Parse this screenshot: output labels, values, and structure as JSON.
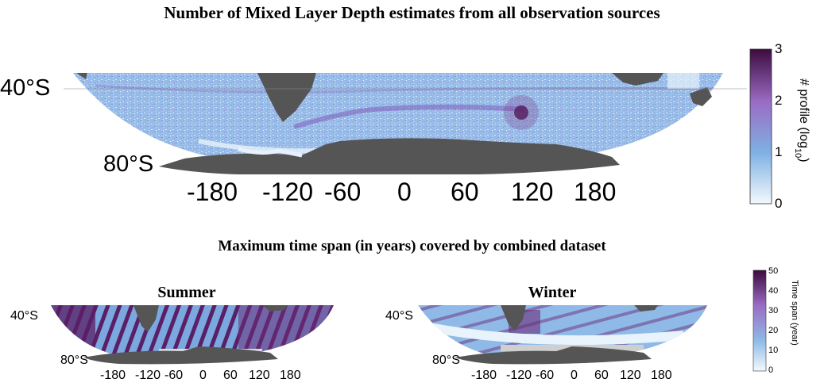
{
  "figure_title": "Number of Mixed Layer Depth estimates from all observation sources",
  "section_title": "Maximum time span (in years) covered by combined dataset",
  "colors": {
    "land": "#555555",
    "low": "#e4f1fb",
    "mid": "#8fbae8",
    "high": "#8a4aa8",
    "max": "#3d0b3f",
    "seaice": "#c9c9c9"
  },
  "top_map": {
    "lat_labels": [
      "40°S",
      "80°S"
    ],
    "lon_labels": [
      "-180",
      "-120",
      "-60",
      "0",
      "60",
      "120",
      "180"
    ],
    "colorbar": {
      "label": "# profile (log",
      "label_sub": "10",
      "label_end": ")",
      "ticks": [
        "0",
        "1",
        "2",
        "3"
      ],
      "min": 0,
      "max": 3
    }
  },
  "summer_map": {
    "title": "Summer",
    "lat_labels": [
      "40°S",
      "80°S"
    ],
    "lon_labels": [
      "-180",
      "-120",
      "-60",
      "0",
      "60",
      "120",
      "180"
    ]
  },
  "winter_map": {
    "title": "Winter",
    "lat_labels": [
      "40°S",
      "80°S"
    ],
    "lon_labels": [
      "-180",
      "-120",
      "-60",
      "0",
      "60",
      "120",
      "180"
    ]
  },
  "time_colorbar": {
    "label": "Time span (year)",
    "ticks": [
      "0",
      "10",
      "20",
      "30",
      "40",
      "50"
    ],
    "min": 0,
    "max": 50
  }
}
